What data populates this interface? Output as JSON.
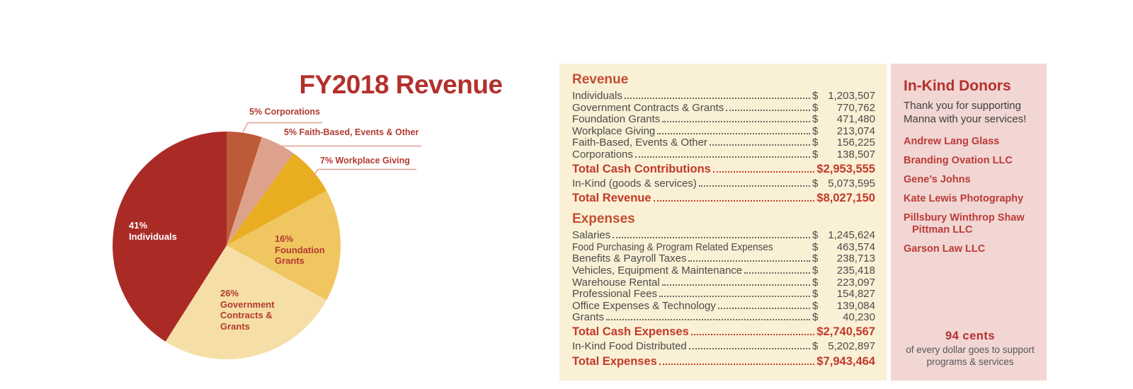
{
  "title": "FY2018 Revenue",
  "colors": {
    "accent_red": "#b3302c",
    "rust_header": "#c24e31",
    "total_red": "#c13a28",
    "body_text": "#4c4b47",
    "donor_red": "#bc3b38",
    "panel_cream": "#faf0d6",
    "panel_pink": "#f1d6d3",
    "leader_line": "#dfa08e"
  },
  "chart_data": {
    "type": "pie",
    "title": "FY2018 Revenue",
    "start_angle_deg": 0,
    "direction": "clockwise",
    "labels": [
      "Corporations",
      "Faith-Based, Events & Other",
      "Workplace Giving",
      "Foundation Grants",
      "Government Contracts & Grants",
      "Individuals"
    ],
    "values": [
      5,
      5,
      7,
      16,
      26,
      41
    ],
    "colors": [
      "#bd5a38",
      "#dda28c",
      "#e9ad22",
      "#f0c660",
      "#f5dfa7",
      "#aa2b26"
    ],
    "legend_position": "callouts-and-inside-labels",
    "callouts": [
      {
        "text": "5% Corporations"
      },
      {
        "text": "5% Faith-Based, Events & Other"
      },
      {
        "text": "7% Workplace Giving"
      }
    ],
    "inside_labels": [
      {
        "pct": "41%",
        "name": "Individuals"
      },
      {
        "pct": "16%",
        "name": "Foundation\nGrants"
      },
      {
        "pct": "26%",
        "name": "Government\nContracts &\nGrants"
      }
    ]
  },
  "financials": {
    "revenue": {
      "header": "Revenue",
      "rows": [
        {
          "label": "Individuals",
          "currency": "$",
          "amount": "1,203,507",
          "style": "normal"
        },
        {
          "label": "Government Contracts & Grants",
          "currency": "$",
          "amount": "770,762",
          "style": "normal"
        },
        {
          "label": "Foundation Grants",
          "currency": "$",
          "amount": "471,480",
          "style": "normal"
        },
        {
          "label": "Workplace Giving",
          "currency": "$",
          "amount": "213,074",
          "style": "normal"
        },
        {
          "label": "Faith-Based, Events & Other",
          "currency": "$",
          "amount": "156,225",
          "style": "normal"
        },
        {
          "label": "Corporations",
          "currency": "$",
          "amount": "138,507",
          "style": "normal"
        },
        {
          "label": "Total Cash Contributions",
          "currency": "",
          "amount": "$2,953,555",
          "style": "total"
        },
        {
          "label": "In-Kind (goods & services)",
          "currency": "$",
          "amount": "5,073,595",
          "style": "normal gap"
        },
        {
          "label": "Total Revenue",
          "currency": "",
          "amount": "$8,027,150",
          "style": "total"
        }
      ]
    },
    "expenses": {
      "header": "Expenses",
      "rows": [
        {
          "label": "Salaries",
          "currency": "$",
          "amount": "1,245,624",
          "style": "normal"
        },
        {
          "label": "Food Purchasing & Program Related Expenses",
          "currency": "$",
          "amount": "463,574",
          "style": "normal condensed"
        },
        {
          "label": "Benefits & Payroll Taxes",
          "currency": "$",
          "amount": "238,713",
          "style": "normal"
        },
        {
          "label": "Vehicles, Equipment & Maintenance",
          "currency": "$",
          "amount": "235,418",
          "style": "normal"
        },
        {
          "label": "Warehouse Rental",
          "currency": "$",
          "amount": "223,097",
          "style": "normal"
        },
        {
          "label": "Professional Fees",
          "currency": "$",
          "amount": "154,827",
          "style": "normal"
        },
        {
          "label": "Office Expenses & Technology",
          "currency": "$",
          "amount": "139,084",
          "style": "normal"
        },
        {
          "label": "Grants",
          "currency": "$",
          "amount": "40,230",
          "style": "normal"
        },
        {
          "label": "Total Cash Expenses",
          "currency": "",
          "amount": "$2,740,567",
          "style": "total"
        },
        {
          "label": "In-Kind Food Distributed",
          "currency": "$",
          "amount": "5,202,897",
          "style": "normal gap"
        },
        {
          "label": "Total Expenses",
          "currency": "",
          "amount": "$7,943,464",
          "style": "total"
        }
      ]
    }
  },
  "donors": {
    "header": "In-Kind Donors",
    "intro": "Thank you for supporting Manna with your services!",
    "names": [
      "Andrew Lang Glass",
      "Branding Ovation LLC",
      "Gene’s Johns",
      "Kate Lewis Photography",
      "Pillsbury Winthrop Shaw Pittman LLC",
      "Garson Law LLC"
    ],
    "footer_stat": "94 cents",
    "footer_text": "of every dollar goes to support programs & services"
  }
}
